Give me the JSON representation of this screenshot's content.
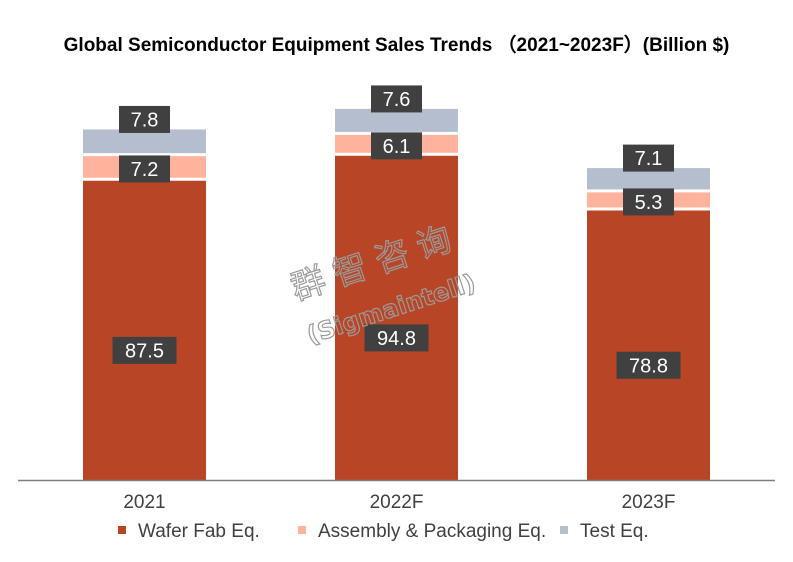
{
  "chart_data": {
    "type": "bar",
    "stacked": true,
    "title": "Global Semiconductor Equipment Sales Trends （2021~2023F）(Billion $)",
    "xlabel": "",
    "ylabel": "",
    "categories": [
      "2021",
      "2022F",
      "2023F"
    ],
    "series": [
      {
        "name": "Wafer Fab Eq.",
        "color": "#B84626",
        "values": [
          87.5,
          94.8,
          78.8
        ]
      },
      {
        "name": "Assembly & Packaging Eq.",
        "color": "#FFB39C",
        "values": [
          7.2,
          6.1,
          5.3
        ]
      },
      {
        "name": "Test Eq.",
        "color": "#B4BECE",
        "values": [
          7.8,
          7.6,
          7.1
        ]
      }
    ],
    "ylim": [
      0,
      110
    ],
    "grid": false,
    "legend": "bottom",
    "data_label_style": {
      "background": "#404040",
      "color": "#ffffff"
    },
    "watermark": {
      "line1": "群智咨询",
      "line2": "(Sigmaintell)"
    }
  }
}
